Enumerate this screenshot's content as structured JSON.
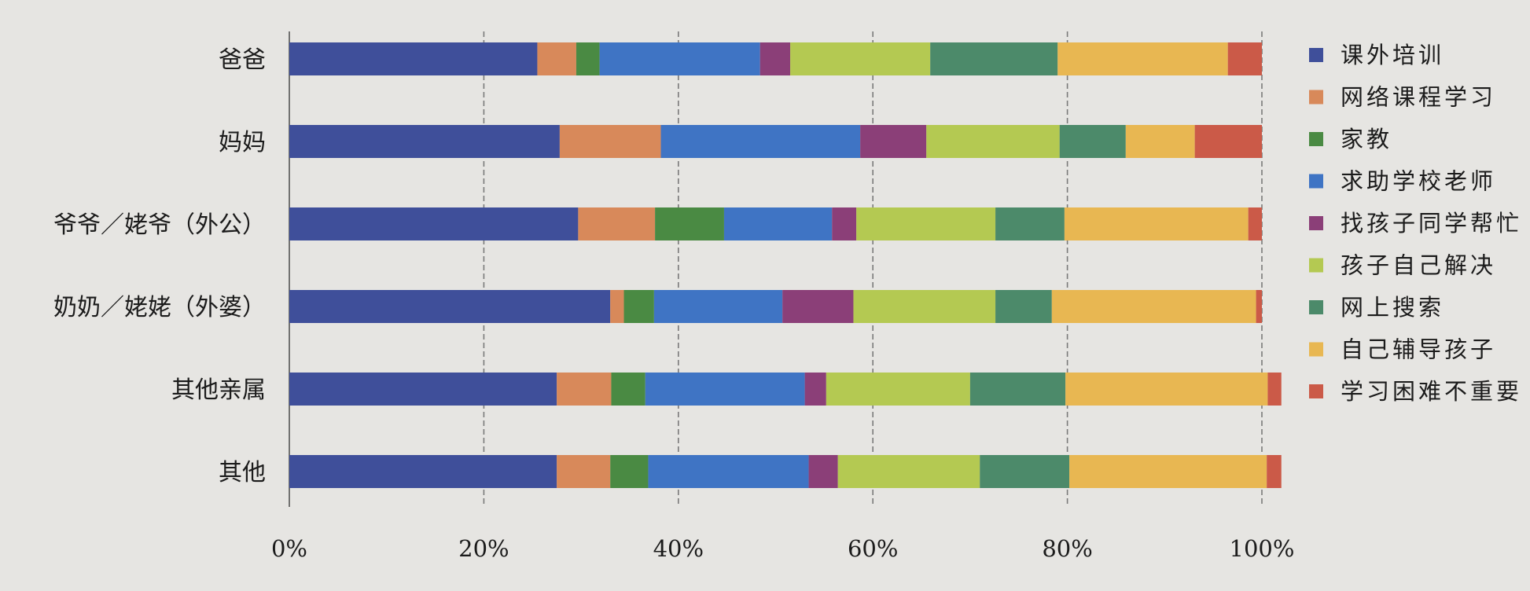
{
  "chart_data": {
    "type": "bar",
    "orientation": "horizontal",
    "stacked": true,
    "percent": true,
    "title": "",
    "xlabel": "",
    "ylabel": "",
    "xlim": [
      0,
      100
    ],
    "x_ticks": [
      "0%",
      "20%",
      "40%",
      "60%",
      "80%",
      "100%"
    ],
    "grid": true,
    "legend_position": "right",
    "categories": [
      "爸爸",
      "妈妈",
      "爷爷／姥爷（外公）",
      "奶奶／姥姥（外婆）",
      "其他亲属",
      "其他"
    ],
    "series": [
      {
        "name": "课外培训",
        "color": "#3f4f9a",
        "values": [
          25.5,
          27.8,
          29.7,
          33.0,
          27.5,
          27.5
        ]
      },
      {
        "name": "网络课程学习",
        "color": "#d8895a",
        "values": [
          4.0,
          10.4,
          7.9,
          1.4,
          5.6,
          5.5
        ]
      },
      {
        "name": "家教",
        "color": "#4a8a43",
        "values": [
          2.4,
          0.0,
          7.1,
          3.1,
          3.5,
          3.9
        ]
      },
      {
        "name": "求助学校老师",
        "color": "#3f74c4",
        "values": [
          16.5,
          20.5,
          11.1,
          13.2,
          16.4,
          16.5
        ]
      },
      {
        "name": "找孩子同学帮忙",
        "color": "#8b3f78",
        "values": [
          3.1,
          6.8,
          2.5,
          7.3,
          2.2,
          3.0
        ]
      },
      {
        "name": "孩子自己解决",
        "color": "#b4c952",
        "values": [
          14.4,
          13.7,
          14.3,
          14.6,
          14.8,
          14.6
        ]
      },
      {
        "name": "网上搜索",
        "color": "#4c8a6a",
        "values": [
          13.1,
          6.8,
          7.1,
          5.8,
          9.8,
          9.2
        ]
      },
      {
        "name": "自己辅导孩子",
        "color": "#e8b752",
        "values": [
          17.5,
          7.1,
          18.9,
          21.0,
          20.8,
          20.3
        ]
      },
      {
        "name": "学习困难不重要",
        "color": "#cb5a48",
        "values": [
          3.5,
          6.9,
          1.4,
          0.6,
          1.4,
          1.5
        ]
      }
    ]
  }
}
